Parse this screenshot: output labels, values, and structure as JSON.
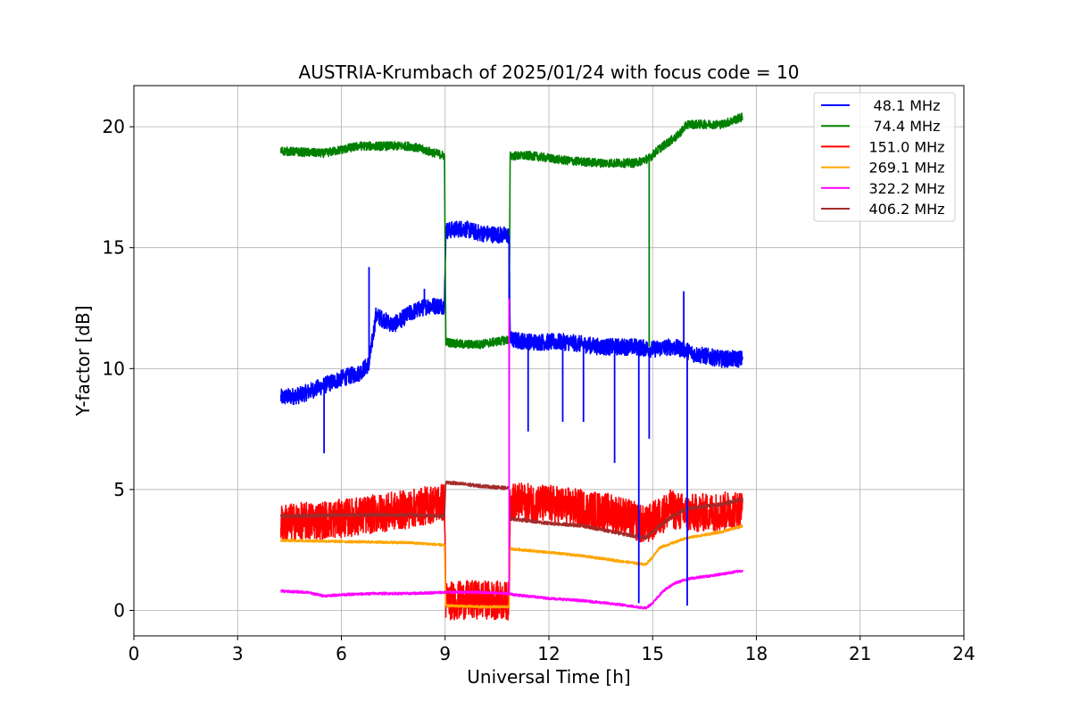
{
  "chart_data": {
    "type": "line",
    "title": "AUSTRIA-Krumbach of 2025/01/24 with focus code = 10",
    "xlabel": "Universal Time [h]",
    "ylabel": "Y-factor [dB]",
    "xlim": [
      0,
      24
    ],
    "ylim": [
      -1.05,
      21.7
    ],
    "xticks": [
      0,
      3,
      6,
      9,
      12,
      15,
      18,
      21,
      24
    ],
    "yticks": [
      0,
      5,
      10,
      15,
      20
    ],
    "grid": true,
    "legend_position": "top-right",
    "series": [
      {
        "name": " 48.1 MHz",
        "color": "#0000ff",
        "noise": 0.35,
        "x": [
          4.25,
          4.8,
          5.5,
          6.0,
          6.5,
          6.8,
          7.0,
          7.5,
          8.0,
          8.5,
          8.98,
          9.02,
          9.5,
          10.0,
          10.85,
          10.88,
          11.5,
          12.5,
          13.5,
          14.5,
          15.0,
          15.5,
          15.9,
          16.2,
          17.0,
          17.6
        ],
        "y": [
          8.8,
          8.9,
          9.3,
          9.6,
          9.8,
          10.2,
          12.2,
          11.8,
          12.3,
          12.6,
          12.6,
          15.7,
          15.8,
          15.6,
          15.5,
          11.2,
          11.1,
          11.1,
          10.9,
          10.9,
          10.8,
          10.9,
          10.8,
          10.6,
          10.4,
          10.4
        ]
      },
      {
        "name": " 74.4 MHz",
        "color": "#008000",
        "noise": 0.18,
        "x": [
          4.25,
          5.5,
          6.5,
          8.0,
          8.98,
          9.02,
          9.5,
          10.0,
          10.85,
          10.88,
          11.5,
          12.5,
          13.5,
          14.5,
          14.9,
          15.2,
          15.7,
          16.0,
          17.0,
          17.6
        ],
        "y": [
          19.0,
          18.9,
          19.2,
          19.2,
          18.8,
          11.1,
          11.0,
          11.0,
          11.2,
          18.8,
          18.8,
          18.6,
          18.5,
          18.5,
          18.7,
          19.1,
          19.6,
          20.1,
          20.1,
          20.4
        ]
      },
      {
        "name": "151.0 MHz",
        "color": "#ff0000",
        "noise": 0.8,
        "x": [
          4.25,
          6.0,
          8.0,
          8.98,
          9.02,
          10.0,
          10.85,
          10.88,
          12.0,
          13.0,
          14.0,
          14.8,
          15.5,
          16.0,
          17.0,
          17.6
        ],
        "y": [
          3.6,
          3.8,
          4.2,
          4.5,
          0.4,
          0.45,
          0.4,
          4.5,
          4.4,
          4.2,
          4.0,
          3.5,
          4.2,
          4.0,
          4.1,
          4.2
        ]
      },
      {
        "name": "269.1 MHz",
        "color": "#ffa500",
        "noise": 0.05,
        "x": [
          4.25,
          6.0,
          8.0,
          8.98,
          9.02,
          10.0,
          10.85,
          10.88,
          12.0,
          13.0,
          14.0,
          14.8,
          15.0,
          15.2,
          16.0,
          17.0,
          17.6
        ],
        "y": [
          2.9,
          2.85,
          2.8,
          2.7,
          0.2,
          0.15,
          0.15,
          2.55,
          2.4,
          2.25,
          2.05,
          1.9,
          2.2,
          2.6,
          3.0,
          3.25,
          3.5
        ]
      },
      {
        "name": "322.2 MHz",
        "color": "#ff00ff",
        "noise": 0.05,
        "x": [
          4.25,
          5.0,
          5.5,
          6.0,
          7.0,
          8.0,
          9.0,
          10.0,
          10.85,
          11.0,
          12.0,
          13.0,
          14.0,
          14.8,
          15.0,
          15.3,
          15.6,
          16.0,
          17.0,
          17.6
        ],
        "y": [
          0.8,
          0.75,
          0.6,
          0.65,
          0.7,
          0.7,
          0.75,
          0.75,
          0.7,
          0.65,
          0.5,
          0.4,
          0.25,
          0.1,
          0.3,
          0.8,
          1.1,
          1.3,
          1.5,
          1.65
        ]
      },
      {
        "name": "406.2 MHz",
        "color": "#a52a2a",
        "noise": 0.07,
        "x": [
          4.25,
          6.0,
          8.0,
          8.98,
          9.02,
          10.0,
          10.85,
          10.88,
          12.0,
          13.0,
          14.0,
          14.8,
          15.2,
          15.7,
          16.0,
          17.0,
          17.6
        ],
        "y": [
          3.9,
          3.95,
          3.95,
          3.9,
          5.3,
          5.15,
          5.05,
          3.8,
          3.6,
          3.5,
          3.2,
          3.0,
          3.5,
          4.0,
          4.2,
          4.4,
          4.6
        ]
      }
    ],
    "spikes": [
      {
        "series": 0,
        "x": 5.5,
        "y": 6.5
      },
      {
        "series": 0,
        "x": 6.8,
        "y": 14.2
      },
      {
        "series": 0,
        "x": 8.4,
        "y": 13.3
      },
      {
        "series": 0,
        "x": 10.85,
        "y": 8.7
      },
      {
        "series": 0,
        "x": 11.4,
        "y": 7.4
      },
      {
        "series": 0,
        "x": 12.4,
        "y": 7.8
      },
      {
        "series": 0,
        "x": 13.0,
        "y": 7.8
      },
      {
        "series": 0,
        "x": 13.9,
        "y": 6.1
      },
      {
        "series": 0,
        "x": 14.6,
        "y": 0.3
      },
      {
        "series": 0,
        "x": 14.9,
        "y": 7.1
      },
      {
        "series": 0,
        "x": 15.9,
        "y": 13.2
      },
      {
        "series": 0,
        "x": 16.0,
        "y": 0.2
      },
      {
        "series": 1,
        "x": 14.9,
        "y": 10.9
      },
      {
        "series": 4,
        "x": 10.85,
        "y": 12.9
      }
    ]
  }
}
